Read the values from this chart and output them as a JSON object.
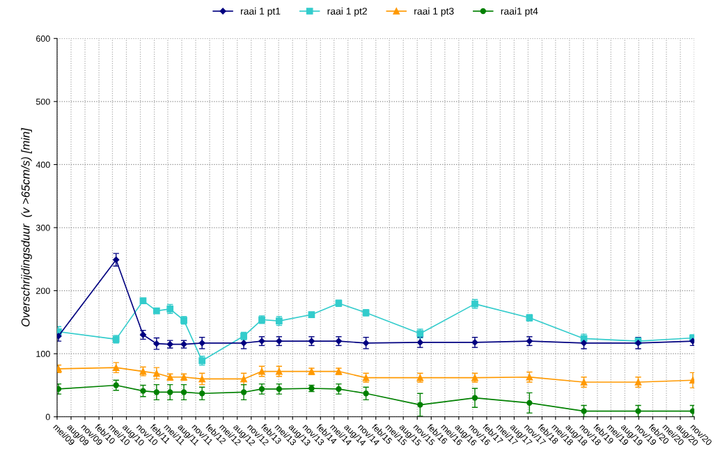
{
  "chart_data": {
    "type": "line",
    "ylabel": "Overschrijdingsduur  (v >65cm/s) [min]",
    "x": [
      "2009-05-10",
      "2010-05-25",
      "2010-11-19",
      "2011-02-16",
      "2011-05-16",
      "2011-08-15",
      "2011-12-13",
      "2012-09-13",
      "2013-01-10",
      "2013-05-04",
      "2013-12-04",
      "2014-06-01",
      "2014-11-28",
      "2015-11-20",
      "2016-11-15",
      "2017-11-10",
      "2018-11-04",
      "2019-10-28",
      "2020-10-22"
    ],
    "series": [
      {
        "name": "raai 1 pt1",
        "color": "#000080",
        "marker": "diamond",
        "values": [
          128,
          249,
          130,
          116,
          115,
          115,
          117,
          117,
          120,
          120,
          120,
          120,
          117,
          118,
          118,
          120,
          117,
          117,
          120
        ],
        "errors": [
          8,
          10,
          7,
          9,
          6,
          6,
          9,
          9,
          7,
          7,
          7,
          7,
          9,
          8,
          8,
          7,
          9,
          9,
          7
        ]
      },
      {
        "name": "raai 1 pt2",
        "color": "#33cccc",
        "marker": "square",
        "values": [
          135,
          123,
          184,
          168,
          171,
          153,
          89,
          128,
          154,
          152,
          162,
          180,
          165,
          132,
          179,
          157,
          124,
          120,
          125
        ],
        "errors": [
          8,
          6,
          4,
          4,
          7,
          6,
          7,
          6,
          6,
          7,
          4,
          5,
          5,
          7,
          7,
          5,
          7,
          5,
          5
        ]
      },
      {
        "name": "raai 1 pt3",
        "color": "#ff9900",
        "marker": "triangle",
        "values": [
          76,
          78,
          72,
          69,
          63,
          63,
          60,
          60,
          72,
          72,
          72,
          72,
          62,
          62,
          62,
          63,
          55,
          55,
          58
        ],
        "errors": [
          6,
          8,
          7,
          9,
          5,
          5,
          9,
          9,
          8,
          8,
          5,
          5,
          7,
          7,
          7,
          8,
          8,
          8,
          12
        ]
      },
      {
        "name": "raai1 pt4",
        "color": "#008000",
        "marker": "circle",
        "values": [
          44,
          50,
          41,
          39,
          39,
          39,
          37,
          39,
          44,
          44,
          45,
          44,
          37,
          19,
          30,
          22,
          9,
          9,
          9
        ],
        "errors": [
          8,
          8,
          9,
          12,
          12,
          12,
          10,
          12,
          8,
          8,
          5,
          8,
          10,
          18,
          15,
          16,
          9,
          9,
          9
        ]
      }
    ],
    "xlim": [
      "2009-05-01",
      "2020-11-01"
    ],
    "xticks": [
      {
        "value": "2009-05",
        "label": "mei/09"
      },
      {
        "value": "2009-08",
        "label": "aug/09"
      },
      {
        "value": "2009-11",
        "label": "nov/09"
      },
      {
        "value": "2010-02",
        "label": "feb/10"
      },
      {
        "value": "2010-05",
        "label": "mei/10"
      },
      {
        "value": "2010-08",
        "label": "aug/10"
      },
      {
        "value": "2010-11",
        "label": "nov/10"
      },
      {
        "value": "2011-02",
        "label": "feb/11"
      },
      {
        "value": "2011-05",
        "label": "mei/11"
      },
      {
        "value": "2011-08",
        "label": "aug/11"
      },
      {
        "value": "2011-11",
        "label": "nov/11"
      },
      {
        "value": "2012-02",
        "label": "feb/12"
      },
      {
        "value": "2012-05",
        "label": "mei/12"
      },
      {
        "value": "2012-08",
        "label": "aug/12"
      },
      {
        "value": "2012-11",
        "label": "nov/12"
      },
      {
        "value": "2013-02",
        "label": "feb/13"
      },
      {
        "value": "2013-05",
        "label": "mei/13"
      },
      {
        "value": "2013-08",
        "label": "aug/13"
      },
      {
        "value": "2013-11",
        "label": "nov/13"
      },
      {
        "value": "2014-02",
        "label": "feb/14"
      },
      {
        "value": "2014-05",
        "label": "mei/14"
      },
      {
        "value": "2014-08",
        "label": "aug/14"
      },
      {
        "value": "2014-11",
        "label": "nov/14"
      },
      {
        "value": "2015-02",
        "label": "feb/15"
      },
      {
        "value": "2015-05",
        "label": "mei/15"
      },
      {
        "value": "2015-08",
        "label": "aug/15"
      },
      {
        "value": "2015-11",
        "label": "nov/15"
      },
      {
        "value": "2016-02",
        "label": "feb/16"
      },
      {
        "value": "2016-05",
        "label": "mei/16"
      },
      {
        "value": "2016-08",
        "label": "aug/16"
      },
      {
        "value": "2016-11",
        "label": "nov/16"
      },
      {
        "value": "2017-02",
        "label": "feb/17"
      },
      {
        "value": "2017-05",
        "label": "mei/17"
      },
      {
        "value": "2017-08",
        "label": "aug/17"
      },
      {
        "value": "2017-11",
        "label": "nov/17"
      },
      {
        "value": "2018-02",
        "label": "feb/18"
      },
      {
        "value": "2018-05",
        "label": "mei/18"
      },
      {
        "value": "2018-08",
        "label": "aug/18"
      },
      {
        "value": "2018-11",
        "label": "nov/18"
      },
      {
        "value": "2019-02",
        "label": "feb/19"
      },
      {
        "value": "2019-05",
        "label": "mei/19"
      },
      {
        "value": "2019-08",
        "label": "aug/19"
      },
      {
        "value": "2019-11",
        "label": "nov/19"
      },
      {
        "value": "2020-02",
        "label": "feb/20"
      },
      {
        "value": "2020-05",
        "label": "mei/20"
      },
      {
        "value": "2020-08",
        "label": "aug/20"
      },
      {
        "value": "2020-11",
        "label": "nov/20"
      }
    ],
    "ylim": [
      0,
      600
    ],
    "yticks": [
      0,
      100,
      200,
      300,
      400,
      500,
      600
    ],
    "grid": true,
    "legend": "top",
    "line_style": "solid"
  }
}
